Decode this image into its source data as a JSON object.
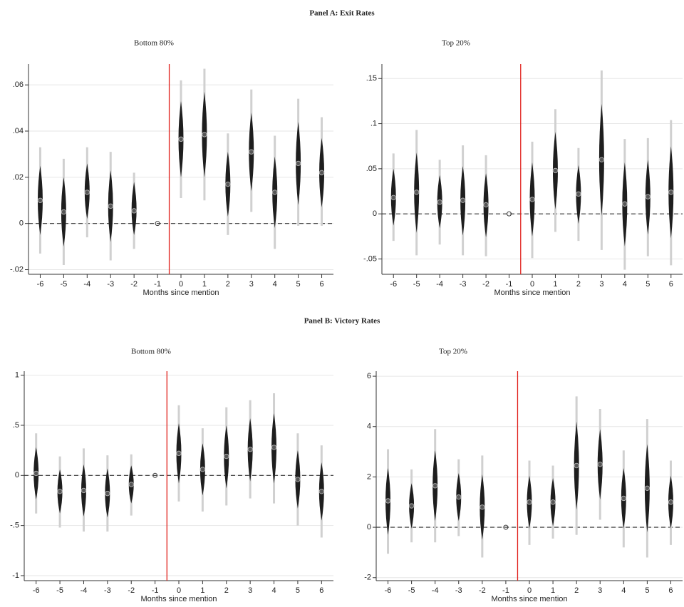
{
  "panels": [
    {
      "title": "Panel A: Exit Rates"
    },
    {
      "title": "Panel B: Victory Rates"
    }
  ],
  "chart_data": [
    {
      "type": "coefplot",
      "title": "Bottom 80%",
      "x_label": "Months since mention",
      "x": [
        -6,
        -5,
        -4,
        -3,
        -2,
        -1,
        0,
        1,
        2,
        3,
        4,
        5,
        6
      ],
      "values": [
        0.01,
        0.005,
        0.0135,
        0.0075,
        0.0055,
        0,
        0.0365,
        0.0385,
        0.017,
        0.031,
        0.0135,
        0.026,
        0.022
      ],
      "inner_low": [
        -0.005,
        -0.01,
        0.002,
        -0.008,
        -0.005,
        null,
        0.02,
        0.02,
        0.003,
        0.014,
        -0.002,
        0.008,
        0.007
      ],
      "inner_high": [
        0.025,
        0.02,
        0.026,
        0.023,
        0.018,
        null,
        0.053,
        0.057,
        0.031,
        0.048,
        0.029,
        0.044,
        0.037
      ],
      "outer_low": [
        -0.013,
        -0.018,
        -0.006,
        -0.016,
        -0.011,
        null,
        0.011,
        0.01,
        -0.005,
        0.005,
        -0.011,
        -0.001,
        -0.001
      ],
      "outer_high": [
        0.033,
        0.028,
        0.033,
        0.031,
        0.022,
        null,
        0.062,
        0.067,
        0.039,
        0.058,
        0.038,
        0.054,
        0.046
      ],
      "xlim": [
        -6.5,
        6.5
      ],
      "xticks": [
        -6,
        -5,
        -4,
        -3,
        -2,
        -1,
        0,
        1,
        2,
        3,
        4,
        5,
        6
      ],
      "ylim": [
        -0.022,
        0.069
      ],
      "yticks": [
        {
          "value": -0.02,
          "label": "-.02"
        },
        0,
        {
          "value": 0.02,
          "label": ".02"
        },
        {
          "value": 0.04,
          "label": ".04"
        },
        {
          "value": 0.06,
          "label": ".06"
        }
      ],
      "grid": true,
      "hline": 0,
      "vline": -0.5,
      "color": "#1e1e1e",
      "outer_color": "#d0d0d0",
      "vline_color": "#e0201b"
    },
    {
      "type": "coefplot",
      "title": "Top 20%",
      "x_label": "Months since mention",
      "x": [
        -6,
        -5,
        -4,
        -3,
        -2,
        -1,
        0,
        1,
        2,
        3,
        4,
        5,
        6
      ],
      "values": [
        0.018,
        0.024,
        0.013,
        0.015,
        0.01,
        0,
        0.016,
        0.048,
        0.022,
        0.06,
        0.011,
        0.019,
        0.024
      ],
      "inner_low": [
        -0.013,
        -0.021,
        -0.016,
        -0.024,
        -0.026,
        null,
        -0.025,
        0.005,
        -0.011,
        -0.002,
        -0.036,
        -0.023,
        -0.027
      ],
      "inner_high": [
        0.05,
        0.068,
        0.043,
        0.053,
        0.045,
        null,
        0.057,
        0.091,
        0.054,
        0.122,
        0.057,
        0.06,
        0.075
      ],
      "outer_low": [
        -0.03,
        -0.046,
        -0.034,
        -0.046,
        -0.047,
        null,
        -0.049,
        -0.02,
        -0.03,
        -0.04,
        -0.062,
        -0.047,
        -0.057
      ],
      "outer_high": [
        0.067,
        0.093,
        0.06,
        0.076,
        0.065,
        null,
        0.08,
        0.116,
        0.073,
        0.159,
        0.083,
        0.084,
        0.104
      ],
      "xlim": [
        -6.5,
        6.5
      ],
      "xticks": [
        -6,
        -5,
        -4,
        -3,
        -2,
        -1,
        0,
        1,
        2,
        3,
        4,
        5,
        6
      ],
      "ylim": [
        -0.067,
        0.166
      ],
      "yticks": [
        {
          "value": -0.05,
          "label": "-.05"
        },
        0,
        {
          "value": 0.05,
          "label": ".05"
        },
        {
          "value": 0.1,
          "label": ".1"
        },
        {
          "value": 0.15,
          "label": ".15"
        }
      ],
      "grid": true,
      "hline": 0,
      "vline": -0.5,
      "color": "#1e1e1e",
      "outer_color": "#d0d0d0",
      "vline_color": "#e0201b"
    },
    {
      "type": "coefplot",
      "title": "Bottom 80%",
      "x_label": "Months since mention",
      "x": [
        -6,
        -5,
        -4,
        -3,
        -2,
        -1,
        0,
        1,
        2,
        3,
        4,
        5,
        6
      ],
      "values": [
        0.02,
        -0.16,
        -0.15,
        -0.18,
        -0.09,
        0,
        0.22,
        0.06,
        0.19,
        0.26,
        0.28,
        -0.04,
        -0.16
      ],
      "inner_low": [
        -0.24,
        -0.38,
        -0.41,
        -0.42,
        -0.28,
        null,
        -0.08,
        -0.2,
        -0.13,
        -0.06,
        -0.08,
        -0.33,
        -0.45
      ],
      "inner_high": [
        0.28,
        0.06,
        0.11,
        0.07,
        0.1,
        null,
        0.52,
        0.32,
        0.5,
        0.57,
        0.62,
        0.25,
        0.13
      ],
      "outer_low": [
        -0.38,
        -0.52,
        -0.56,
        -0.56,
        -0.4,
        null,
        -0.26,
        -0.36,
        -0.3,
        -0.23,
        -0.28,
        -0.5,
        -0.62
      ],
      "outer_high": [
        0.42,
        0.19,
        0.27,
        0.2,
        0.21,
        null,
        0.7,
        0.47,
        0.68,
        0.75,
        0.82,
        0.42,
        0.3
      ],
      "xlim": [
        -6.5,
        6.5
      ],
      "xticks": [
        -6,
        -5,
        -4,
        -3,
        -2,
        -1,
        0,
        1,
        2,
        3,
        4,
        5,
        6
      ],
      "ylim": [
        -1.05,
        1.04
      ],
      "yticks": [
        -1,
        {
          "value": -0.5,
          "label": "-.5"
        },
        0,
        {
          "value": 0.5,
          "label": ".5"
        },
        1
      ],
      "grid": true,
      "hline": 0,
      "vline": -0.5,
      "color": "#1e1e1e",
      "outer_color": "#d0d0d0",
      "vline_color": "#e0201b"
    },
    {
      "type": "coefplot",
      "title": "Top 20%",
      "x_label": "Months since mention",
      "x": [
        -6,
        -5,
        -4,
        -3,
        -2,
        -1,
        0,
        1,
        2,
        3,
        4,
        5,
        6
      ],
      "values": [
        1.05,
        0.85,
        1.65,
        1.2,
        0.8,
        0,
        1.0,
        1.0,
        2.45,
        2.5,
        1.15,
        1.55,
        1.0
      ],
      "inner_low": [
        -0.3,
        -0.05,
        0.25,
        0.25,
        -0.5,
        null,
        -0.05,
        0.05,
        0.7,
        1.1,
        -0.05,
        -0.2,
        -0.05
      ],
      "inner_high": [
        2.35,
        1.75,
        3.05,
        2.15,
        2.1,
        null,
        2.05,
        1.95,
        4.2,
        3.9,
        2.35,
        3.3,
        2.05
      ],
      "outer_low": [
        -1.05,
        -0.6,
        -0.6,
        -0.35,
        -1.2,
        null,
        -0.7,
        -0.45,
        -0.3,
        0.3,
        -0.8,
        -1.2,
        -0.7
      ],
      "outer_high": [
        3.1,
        2.3,
        3.9,
        2.7,
        2.85,
        null,
        2.65,
        2.45,
        5.2,
        4.7,
        3.05,
        4.3,
        2.65
      ],
      "xlim": [
        -6.5,
        6.5
      ],
      "xticks": [
        -6,
        -5,
        -4,
        -3,
        -2,
        -1,
        0,
        1,
        2,
        3,
        4,
        5,
        6
      ],
      "ylim": [
        -2.12,
        6.2
      ],
      "yticks": [
        -2,
        0,
        2,
        4,
        6
      ],
      "grid": true,
      "hline": 0,
      "vline": -0.5,
      "color": "#1e1e1e",
      "outer_color": "#d0d0d0",
      "vline_color": "#e0201b"
    }
  ]
}
